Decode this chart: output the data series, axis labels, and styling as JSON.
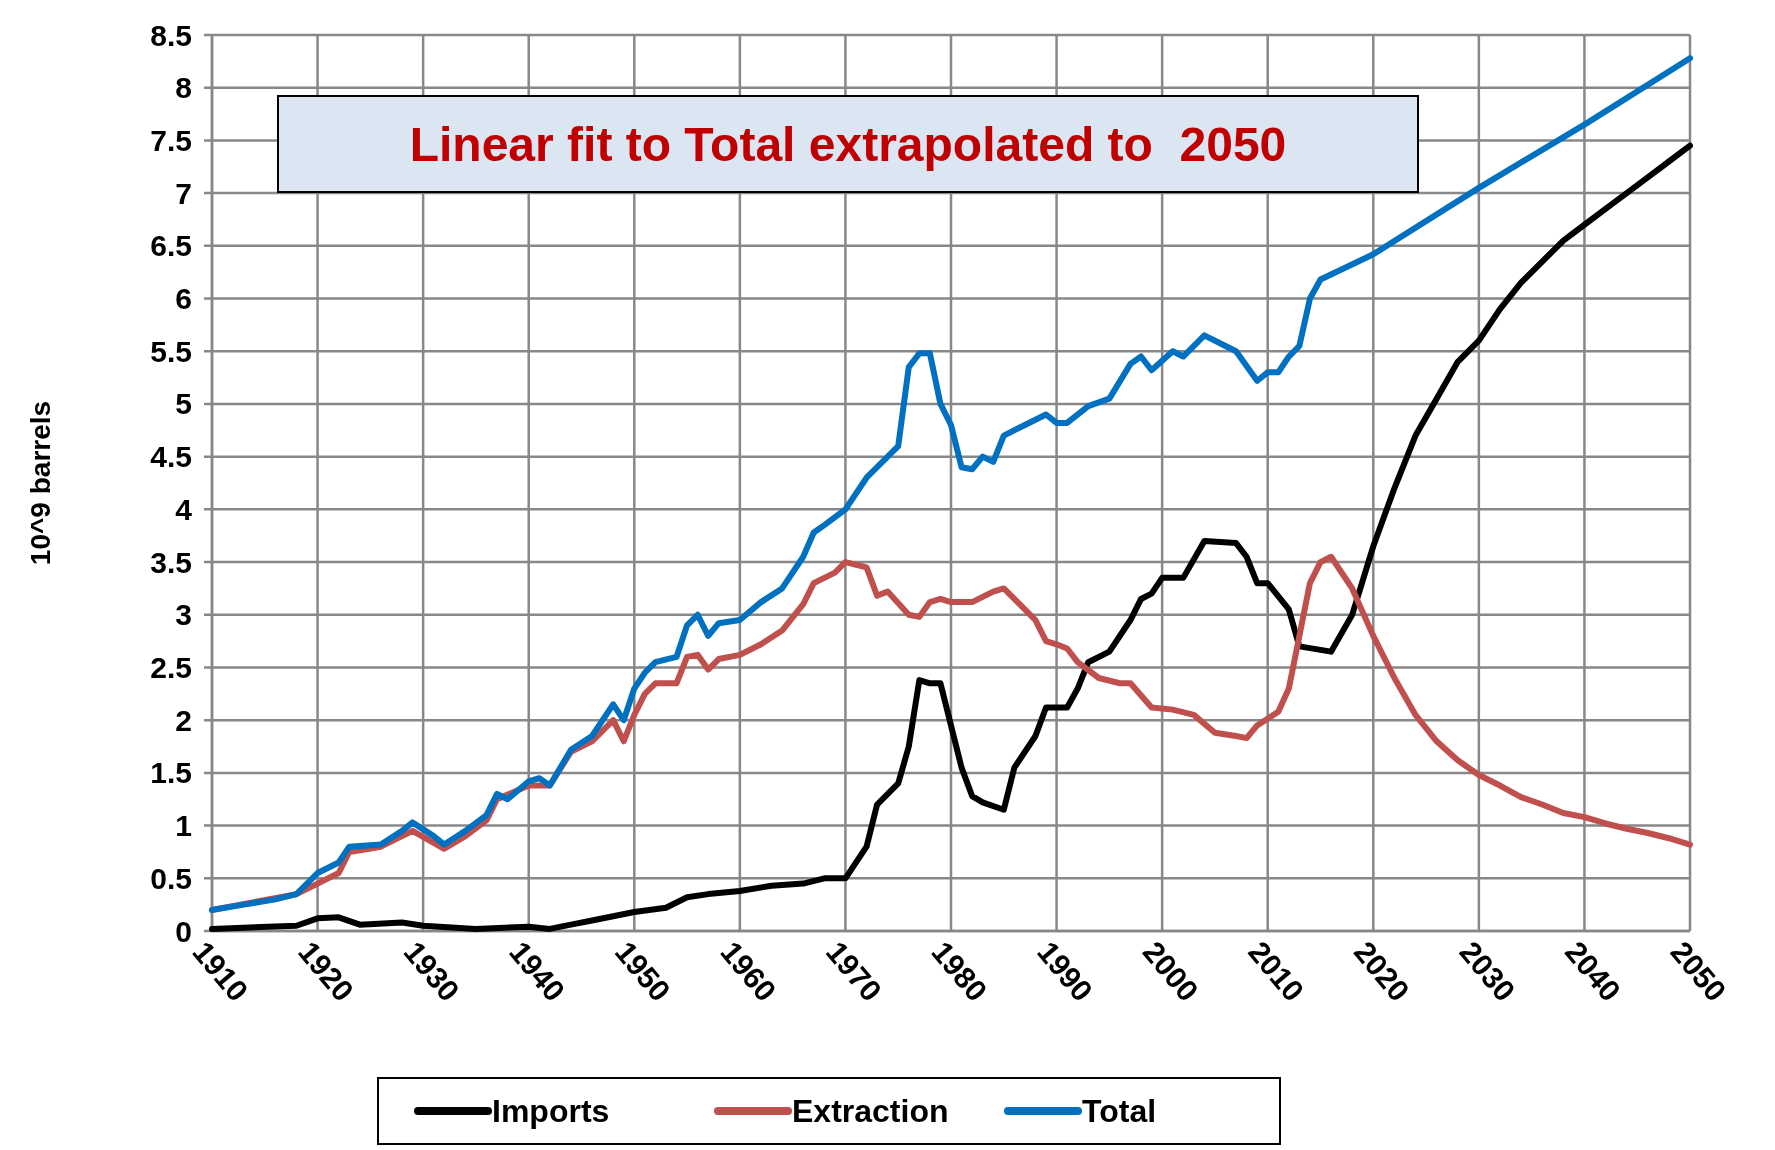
{
  "chart_data": {
    "type": "line",
    "title": "Linear fit to Total extrapolated to  2050",
    "ylabel": "10^9 barrels",
    "xlim": [
      1910,
      2050
    ],
    "ylim": [
      0,
      8.5
    ],
    "xticks": [
      1910,
      1920,
      1930,
      1940,
      1950,
      1960,
      1970,
      1980,
      1990,
      2000,
      2010,
      2020,
      2030,
      2040,
      2050
    ],
    "yticks": [
      0,
      0.5,
      1,
      1.5,
      2,
      2.5,
      3,
      3.5,
      4,
      4.5,
      5,
      5.5,
      6,
      6.5,
      7,
      7.5,
      8,
      8.5
    ],
    "grid": true,
    "legend": "bottom",
    "marker": "none",
    "line_style": "solid",
    "series": [
      {
        "name": "Imports",
        "color": "#000000",
        "x": [
          1910,
          1918,
          1920,
          1922,
          1924,
          1928,
          1930,
          1935,
          1940,
          1942,
          1944,
          1946,
          1948,
          1950,
          1953,
          1955,
          1957,
          1960,
          1963,
          1966,
          1968,
          1970,
          1972,
          1973,
          1975,
          1976,
          1977,
          1978,
          1979,
          1980,
          1981,
          1982,
          1983,
          1985,
          1986,
          1988,
          1989,
          1991,
          1992,
          1993,
          1995,
          1997,
          1998,
          1999,
          2000,
          2002,
          2004,
          2007,
          2008,
          2009,
          2010,
          2012,
          2013,
          2016,
          2018,
          2020,
          2022,
          2024,
          2026,
          2028,
          2030,
          2032,
          2034,
          2036,
          2038,
          2040,
          2042,
          2044,
          2046,
          2048,
          2050
        ],
        "values": [
          0.02,
          0.05,
          0.12,
          0.13,
          0.06,
          0.08,
          0.05,
          0.02,
          0.04,
          0.02,
          0.06,
          0.1,
          0.14,
          0.18,
          0.22,
          0.32,
          0.35,
          0.38,
          0.43,
          0.45,
          0.5,
          0.5,
          0.8,
          1.2,
          1.4,
          1.75,
          2.38,
          2.35,
          2.35,
          1.95,
          1.55,
          1.28,
          1.22,
          1.15,
          1.55,
          1.85,
          2.12,
          2.12,
          2.3,
          2.55,
          2.65,
          2.95,
          3.15,
          3.2,
          3.35,
          3.35,
          3.7,
          3.68,
          3.55,
          3.3,
          3.3,
          3.05,
          2.7,
          2.65,
          3.0,
          3.65,
          4.2,
          4.7,
          5.05,
          5.4,
          5.6,
          5.9,
          6.15,
          6.35,
          6.55,
          6.7,
          6.85,
          7.0,
          7.15,
          7.3,
          7.45
        ]
      },
      {
        "name": "Extraction",
        "color": "#c0504d",
        "x": [
          1910,
          1918,
          1920,
          1922,
          1923,
          1926,
          1929,
          1932,
          1934,
          1936,
          1937,
          1940,
          1942,
          1944,
          1946,
          1948,
          1949,
          1950,
          1951,
          1952,
          1954,
          1955,
          1956,
          1957,
          1958,
          1960,
          1962,
          1964,
          1966,
          1967,
          1969,
          1970,
          1972,
          1973,
          1974,
          1976,
          1977,
          1978,
          1979,
          1980,
          1982,
          1984,
          1985,
          1986,
          1988,
          1989,
          1990,
          1991,
          1992,
          1994,
          1996,
          1997,
          1999,
          2001,
          2003,
          2005,
          2007,
          2008,
          2009,
          2011,
          2012,
          2013,
          2014,
          2015,
          2016,
          2018,
          2020,
          2022,
          2024,
          2026,
          2028,
          2030,
          2032,
          2034,
          2036,
          2038,
          2040,
          2042,
          2044,
          2046,
          2048,
          2050
        ],
        "values": [
          0.2,
          0.35,
          0.45,
          0.55,
          0.75,
          0.8,
          0.95,
          0.78,
          0.9,
          1.05,
          1.25,
          1.38,
          1.38,
          1.7,
          1.8,
          2.0,
          1.8,
          2.05,
          2.25,
          2.35,
          2.35,
          2.6,
          2.62,
          2.48,
          2.58,
          2.62,
          2.72,
          2.85,
          3.1,
          3.3,
          3.4,
          3.5,
          3.45,
          3.18,
          3.22,
          3.0,
          2.98,
          3.12,
          3.15,
          3.12,
          3.12,
          3.22,
          3.25,
          3.15,
          2.95,
          2.75,
          2.72,
          2.68,
          2.55,
          2.4,
          2.35,
          2.35,
          2.12,
          2.1,
          2.05,
          1.88,
          1.85,
          1.83,
          1.95,
          2.08,
          2.3,
          2.8,
          3.3,
          3.5,
          3.55,
          3.25,
          2.8,
          2.4,
          2.05,
          1.8,
          1.62,
          1.48,
          1.38,
          1.27,
          1.2,
          1.12,
          1.08,
          1.02,
          0.97,
          0.93,
          0.88,
          0.82
        ]
      },
      {
        "name": "Total",
        "color": "#0070c0",
        "x": [
          1910,
          1913,
          1916,
          1918,
          1920,
          1922,
          1923,
          1926,
          1928,
          1929,
          1931,
          1932,
          1934,
          1936,
          1937,
          1938,
          1940,
          1941,
          1942,
          1944,
          1946,
          1948,
          1949,
          1950,
          1951,
          1952,
          1954,
          1955,
          1956,
          1957,
          1958,
          1960,
          1962,
          1964,
          1966,
          1967,
          1968,
          1970,
          1972,
          1974,
          1975,
          1976,
          1977,
          1978,
          1979,
          1980,
          1981,
          1982,
          1983,
          1984,
          1985,
          1987,
          1989,
          1990,
          1991,
          1993,
          1995,
          1997,
          1998,
          1999,
          2001,
          2002,
          2004,
          2006,
          2007,
          2009,
          2010,
          2011,
          2012,
          2013,
          2014,
          2015,
          2020,
          2030,
          2040,
          2050
        ],
        "values": [
          0.2,
          0.25,
          0.3,
          0.35,
          0.55,
          0.65,
          0.8,
          0.82,
          0.95,
          1.03,
          0.9,
          0.82,
          0.95,
          1.1,
          1.3,
          1.25,
          1.42,
          1.45,
          1.38,
          1.72,
          1.85,
          2.15,
          2.0,
          2.3,
          2.45,
          2.55,
          2.6,
          2.9,
          3.0,
          2.8,
          2.92,
          2.95,
          3.12,
          3.25,
          3.55,
          3.78,
          3.85,
          4.0,
          4.3,
          4.5,
          4.6,
          5.35,
          5.48,
          5.48,
          5.0,
          4.8,
          4.4,
          4.38,
          4.5,
          4.45,
          4.7,
          4.8,
          4.9,
          4.82,
          4.82,
          4.98,
          5.05,
          5.38,
          5.45,
          5.32,
          5.5,
          5.45,
          5.65,
          5.55,
          5.5,
          5.22,
          5.3,
          5.3,
          5.45,
          5.55,
          6.0,
          6.18,
          6.42,
          7.05,
          7.65,
          8.28
        ]
      }
    ]
  }
}
